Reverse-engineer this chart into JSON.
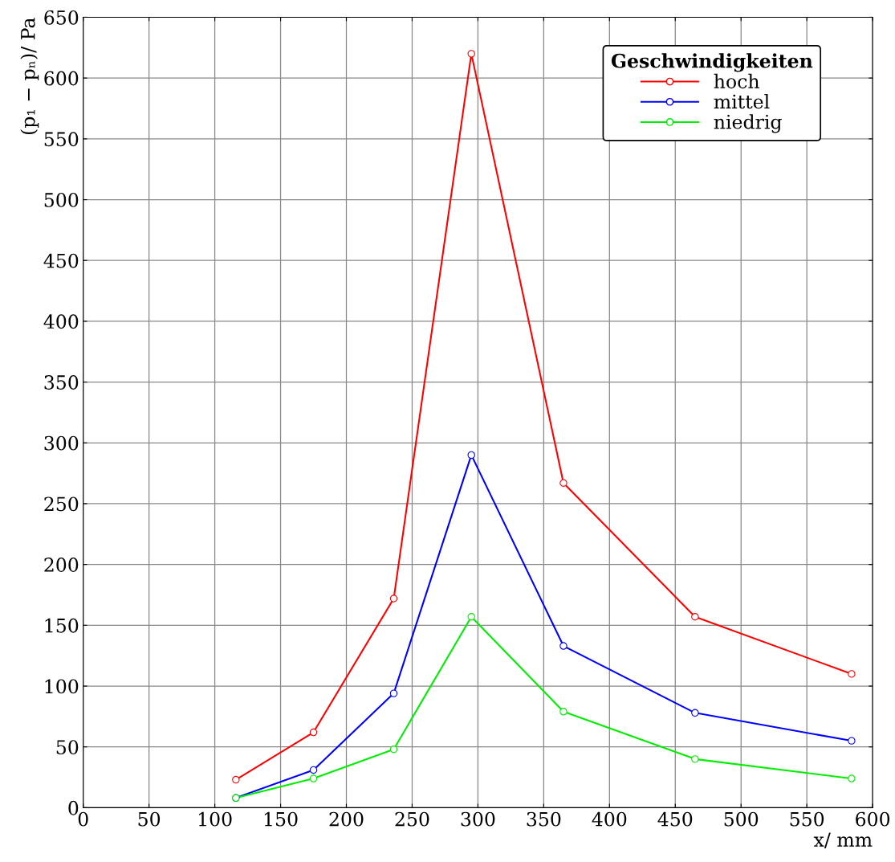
{
  "chart_data": {
    "type": "line",
    "xlabel": "x/ mm",
    "ylabel": "(p₁ − pₙ)/ Pa",
    "legend_title": "Geschwindigkeiten",
    "x": [
      116,
      175,
      236,
      295,
      365,
      465,
      584
    ],
    "series": [
      {
        "name": "hoch",
        "color": "#ff0000",
        "values": [
          23,
          62,
          172,
          620,
          267,
          157,
          110
        ]
      },
      {
        "name": "mittel",
        "color": "#0000ff",
        "values": [
          8,
          31,
          94,
          290,
          133,
          78,
          55
        ]
      },
      {
        "name": "niedrig",
        "color": "#00ee00",
        "values": [
          8,
          24,
          48,
          157,
          79,
          40,
          24
        ]
      }
    ],
    "xlim": [
      0,
      600
    ],
    "ylim": [
      0,
      650
    ],
    "xticks": [
      0,
      50,
      100,
      150,
      200,
      250,
      300,
      350,
      400,
      450,
      500,
      550,
      600
    ],
    "yticks": [
      0,
      50,
      100,
      150,
      200,
      250,
      300,
      350,
      400,
      450,
      500,
      550,
      600,
      650
    ],
    "grid": true,
    "legend": "top right",
    "marker": "circle",
    "line_style": "solid"
  }
}
